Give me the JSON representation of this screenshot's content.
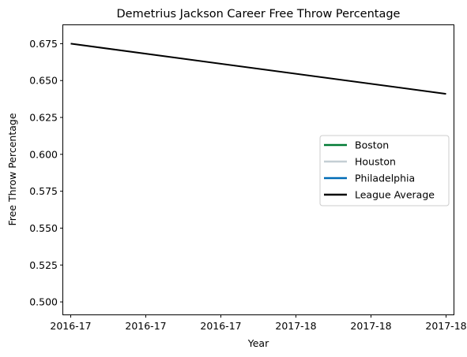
{
  "chart_data": {
    "type": "line",
    "title": "Demetrius Jackson Career Free Throw Percentage",
    "xlabel": "Year",
    "ylabel": "Free Throw Percentage",
    "x_tick_labels": [
      "2016-17",
      "2016-17",
      "2016-17",
      "2017-18",
      "2017-18",
      "2017-18"
    ],
    "xlim": [
      -0.1,
      5.1
    ],
    "ylim": [
      0.4915,
      0.6875
    ],
    "y_ticks": [
      0.5,
      0.525,
      0.55,
      0.575,
      0.6,
      0.625,
      0.65,
      0.675
    ],
    "y_tick_labels": [
      "0.500",
      "0.525",
      "0.550",
      "0.575",
      "0.600",
      "0.625",
      "0.650",
      "0.675"
    ],
    "grid": false,
    "legend_position": "center-right",
    "series": [
      {
        "name": "Boston",
        "color": "#007a33",
        "points": []
      },
      {
        "name": "Houston",
        "color": "#c4ced4",
        "points": []
      },
      {
        "name": "Philadelphia",
        "color": "#006bb6",
        "points": []
      },
      {
        "name": "League Average",
        "color": "#000000",
        "points": [
          {
            "x": 0,
            "y": 0.675
          },
          {
            "x": 5,
            "y": 0.641
          }
        ]
      }
    ]
  }
}
